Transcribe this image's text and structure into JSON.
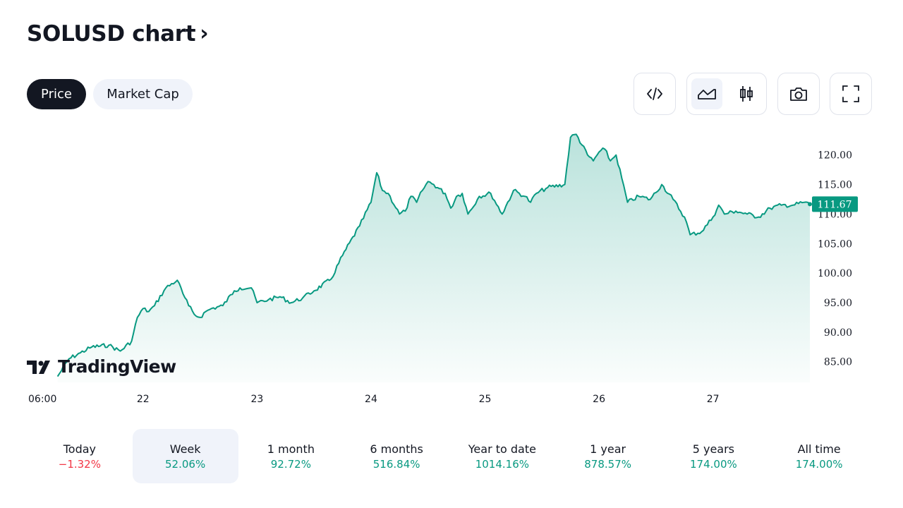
{
  "header": {
    "title": "SOLUSD chart"
  },
  "tabs": [
    {
      "label": "Price",
      "active": true
    },
    {
      "label": "Market Cap",
      "active": false
    }
  ],
  "toolbar": {
    "buttons": [
      {
        "icon": "embed-code-icon"
      },
      {
        "icon": "area-chart-icon",
        "selected": true
      },
      {
        "icon": "candlestick-chart-icon"
      },
      {
        "icon": "camera-icon"
      },
      {
        "icon": "fullscreen-icon"
      }
    ]
  },
  "logo": {
    "text": "TradingView"
  },
  "colors": {
    "line": "#089981",
    "up": "#089981",
    "down": "#f23645",
    "dark": "#131722"
  },
  "chart_data": {
    "type": "area",
    "title": "",
    "xlabel": "",
    "ylabel": "",
    "x_tick_labels": [
      "06:00",
      "22",
      "23",
      "24",
      "25",
      "26",
      "27"
    ],
    "y_tick_labels": [
      "85.00",
      "90.00",
      "95.00",
      "100.00",
      "105.00",
      "110.00",
      "115.00",
      "120.00"
    ],
    "ylim": [
      81.5,
      124.5
    ],
    "last_value": 111.67,
    "last_value_label": "111.67",
    "grid": false,
    "series": [
      {
        "x_days": [
          0,
          0.1,
          0.2,
          0.3,
          0.45,
          0.55,
          0.65,
          0.7,
          0.75,
          0.8,
          0.85,
          0.95,
          1.05,
          1.1,
          1.15,
          1.2,
          1.25,
          1.3,
          1.35,
          1.45,
          1.55,
          1.6,
          1.7,
          1.75,
          1.85,
          1.95,
          2.05,
          2.15,
          2.25,
          2.4,
          2.5,
          2.65,
          2.75,
          2.8,
          2.85,
          2.9,
          3.0,
          3.05,
          3.1,
          3.15,
          3.2,
          3.25,
          3.3,
          3.4,
          3.45,
          3.5,
          3.55,
          3.6,
          3.7,
          3.8,
          3.9,
          4.0,
          4.1,
          4.15,
          4.2,
          4.3,
          4.45,
          4.5,
          4.55,
          4.65,
          4.7,
          4.75,
          4.8,
          4.85,
          4.9,
          5.0,
          5.1,
          5.2,
          5.3,
          5.4,
          5.5,
          5.55,
          5.65,
          5.75,
          5.8,
          5.85,
          5.95,
          6.05,
          6.15,
          6.25,
          6.35,
          6.45,
          6.55,
          6.6
        ],
        "values": [
          82.5,
          85.5,
          86.5,
          87.5,
          87.8,
          86.8,
          88.5,
          92.5,
          94.0,
          93.5,
          94.5,
          97.5,
          98.8,
          96.5,
          94.5,
          93.0,
          92.5,
          93.5,
          94.0,
          94.5,
          97.0,
          97.5,
          97.5,
          95.0,
          95.5,
          96.0,
          95.0,
          95.8,
          97.0,
          99.0,
          103.0,
          108.0,
          112.0,
          117.0,
          114.0,
          113.5,
          110.0,
          110.5,
          113.0,
          112.0,
          114.0,
          115.5,
          115.0,
          113.5,
          111.0,
          113.0,
          113.5,
          110.0,
          113.0,
          113.5,
          110.0,
          114.0,
          113.0,
          112.0,
          113.5,
          114.5,
          115.0,
          123.0,
          123.5,
          120.0,
          119.0,
          120.5,
          121.0,
          119.0,
          120.0,
          112.0,
          113.0,
          112.5,
          115.0,
          112.5,
          109.5,
          106.5,
          107.0,
          109.5,
          111.5,
          110.0,
          110.5,
          110.0,
          109.5,
          111.0,
          111.5,
          111.5,
          112.0,
          111.67
        ]
      }
    ]
  },
  "periods": [
    {
      "label": "Today",
      "value": "−1.32%",
      "direction": "down",
      "selected": false
    },
    {
      "label": "Week",
      "value": "52.06%",
      "direction": "up",
      "selected": true
    },
    {
      "label": "1 month",
      "value": "92.72%",
      "direction": "up",
      "selected": false
    },
    {
      "label": "6 months",
      "value": "516.84%",
      "direction": "up",
      "selected": false
    },
    {
      "label": "Year to date",
      "value": "1014.16%",
      "direction": "up",
      "selected": false
    },
    {
      "label": "1 year",
      "value": "878.57%",
      "direction": "up",
      "selected": false
    },
    {
      "label": "5 years",
      "value": "174.00%",
      "direction": "up",
      "selected": false
    },
    {
      "label": "All time",
      "value": "174.00%",
      "direction": "up",
      "selected": false
    }
  ]
}
